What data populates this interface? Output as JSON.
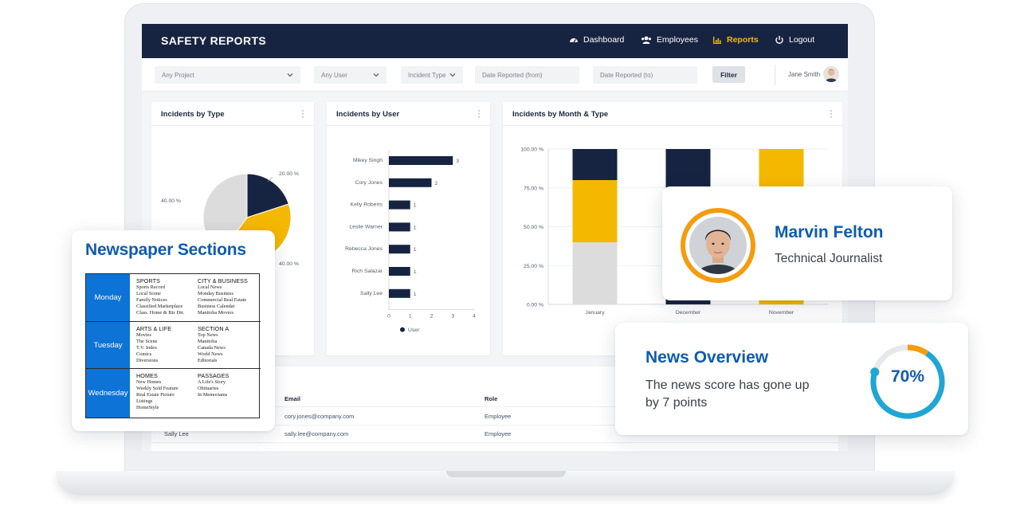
{
  "app": {
    "brand": "SAFETY REPORTS",
    "nav": [
      {
        "label": "Dashboard",
        "icon": "dashboard-icon"
      },
      {
        "label": "Employees",
        "icon": "users-icon"
      },
      {
        "label": "Reports",
        "icon": "bar-chart-icon",
        "active": true
      },
      {
        "label": "Logout",
        "icon": "power-icon"
      }
    ],
    "accent": "#f5b800",
    "nav_bg": "#172441"
  },
  "filters": {
    "project": "Any Project",
    "user": "Any User",
    "incident_type": "Incident Type",
    "date_from_placeholder": "Date Reported (from)",
    "date_to_placeholder": "Date Reported (to)",
    "filter_button": "Filter",
    "current_user": "Jane Smith"
  },
  "cards": {
    "by_type": "Incidents by Type",
    "by_user": "Incidents by User",
    "by_month": "Incidents by Month & Type"
  },
  "table": {
    "headers": {
      "email": "Email",
      "role": "Role"
    },
    "rows": [
      {
        "email": "cory.jones@company.com",
        "role": "Employee"
      },
      {
        "name": "Sally Lee",
        "email": "sally.lee@company.com",
        "role": "Employee"
      }
    ]
  },
  "chart_data": [
    {
      "type": "pie",
      "title": "Incidents by Type",
      "slices": [
        {
          "label": "20.00 %",
          "value": 20,
          "color": "#172441"
        },
        {
          "label": "40.00 %",
          "value": 40,
          "color": "#f5b800"
        },
        {
          "label": "40.00 %",
          "value": 40,
          "color": "#dcdcdc"
        }
      ]
    },
    {
      "type": "bar",
      "orientation": "horizontal",
      "title": "Incidents by User",
      "categories": [
        "Mikey Singh",
        "Cory Jones",
        "Kelly Roberts",
        "Leslie Warner",
        "Rebecca Jones",
        "Rich Salazar",
        "Sally Lee"
      ],
      "series": [
        {
          "name": "User",
          "values": [
            3,
            2,
            1,
            1,
            1,
            1,
            1
          ],
          "color": "#172441"
        }
      ],
      "xticks": [
        "0",
        "1",
        "2",
        "3",
        "4"
      ],
      "xlim": [
        0,
        4
      ],
      "legend": "bottom"
    },
    {
      "type": "bar",
      "stacked": true,
      "title": "Incidents by Month & Type",
      "categories": [
        "January",
        "December",
        "November"
      ],
      "series": [
        {
          "values": [
            0.4,
            0,
            0
          ],
          "color": "#dcdcdc"
        },
        {
          "values": [
            0.4,
            0,
            1.0
          ],
          "color": "#f5b800"
        },
        {
          "values": [
            0.2,
            1.0,
            0
          ],
          "color": "#172441"
        }
      ],
      "yticks": [
        "0.00 %",
        "25.00 %",
        "50.00 %",
        "75.00 %",
        "100.00 %"
      ],
      "ylim": [
        0,
        1
      ]
    }
  ],
  "newspaper": {
    "title": "Newspaper Sections",
    "rows": [
      {
        "day": "Monday",
        "cols": [
          {
            "heading": "SPORTS",
            "items": [
              "Sports Record",
              "Local Scene",
              "Family Notices",
              "Classified Marketplace",
              "Class. Home & Biz Dir."
            ]
          },
          {
            "heading": "CITY & BUSINESS",
            "items": [
              "Local News",
              "Monday Business",
              "Commercial Real Estate",
              "Business Calendar",
              "Manitoba Movers"
            ]
          }
        ]
      },
      {
        "day": "Tuesday",
        "cols": [
          {
            "heading": "ARTS & LIFE",
            "items": [
              "Movies",
              "The Scene",
              "T.V. Index",
              "Comics",
              "Diversions"
            ]
          },
          {
            "heading": "SECTION A",
            "items": [
              "Top News",
              "Manitoba",
              "Canada News",
              "World News",
              "Editorials"
            ]
          }
        ]
      },
      {
        "day": "Wednesday",
        "cols": [
          {
            "heading": "HOMES",
            "items": [
              "New Homes",
              "Weekly Sold Feature",
              "Real Estate Picture",
              "Listings",
              "HomeStyle"
            ]
          },
          {
            "heading": "PASSAGES",
            "items": [
              "A Life's Story",
              "Obituaries",
              "In Memoriams"
            ]
          }
        ]
      }
    ]
  },
  "profile": {
    "name": "Marvin Felton",
    "role": "Technical Journalist"
  },
  "overview": {
    "title": "News Overview",
    "text": "The news score has gone up by 7 points",
    "percent_label": "70%",
    "percent": 0.7
  }
}
